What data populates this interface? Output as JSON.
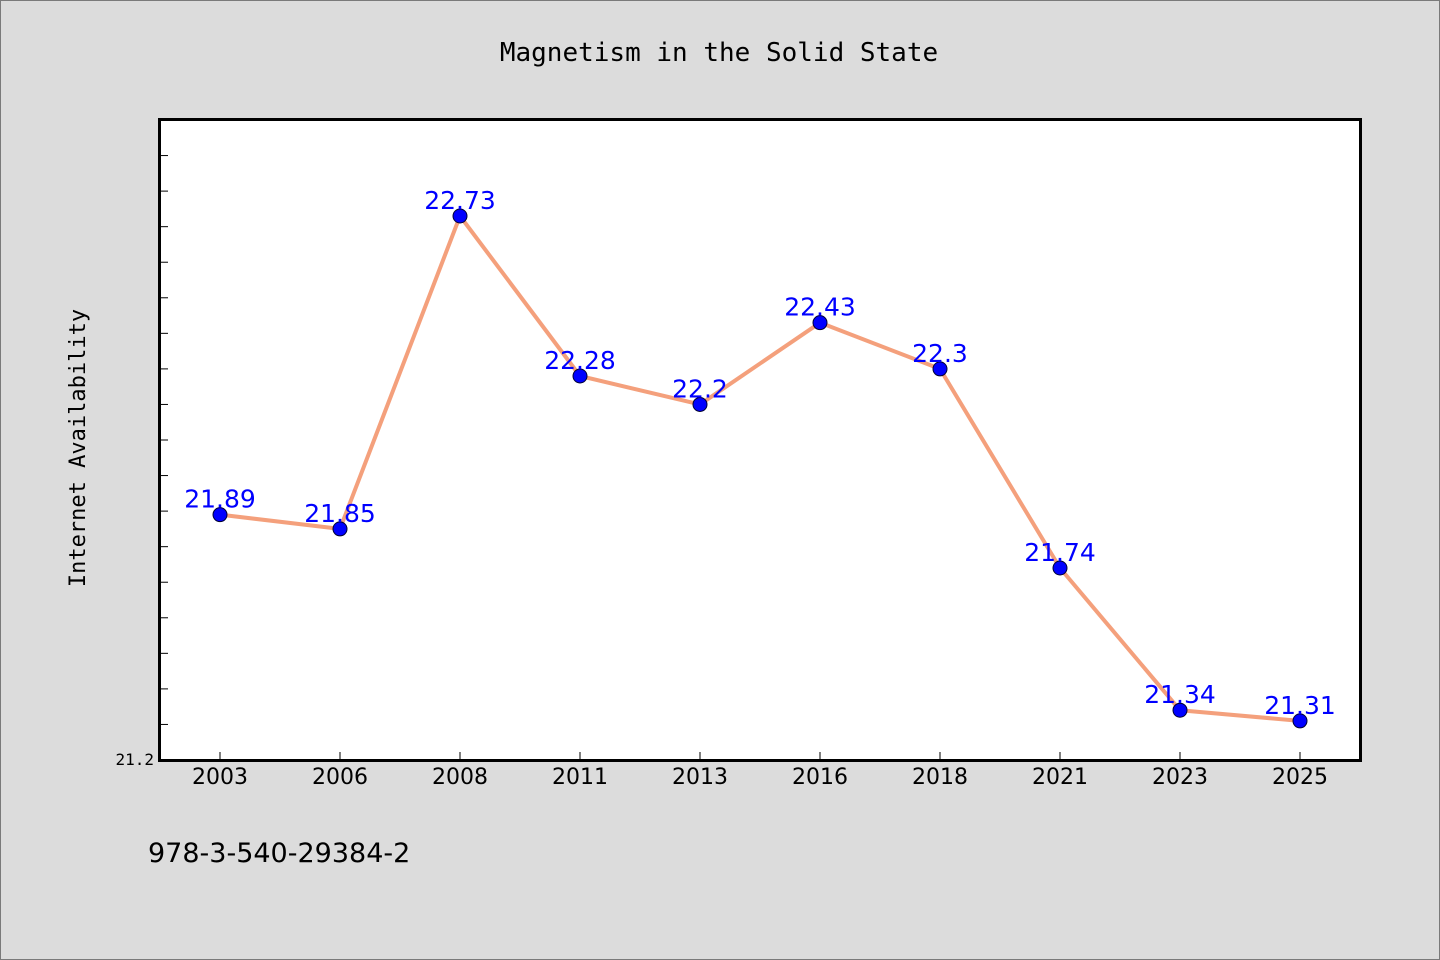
{
  "chart_data": {
    "type": "line",
    "title": "Magnetism in the Solid State",
    "xlabel": "",
    "ylabel": "Internet Availability",
    "categories": [
      "2003",
      "2006",
      "2008",
      "2011",
      "2013",
      "2016",
      "2018",
      "2021",
      "2023",
      "2025"
    ],
    "series": [
      {
        "values": [
          21.89,
          21.85,
          22.73,
          22.28,
          22.2,
          22.43,
          22.3,
          21.74,
          21.34,
          21.31
        ],
        "data_labels": [
          "21.89",
          "21.85",
          "22.73",
          "22.28",
          "22.2",
          "22.43",
          "22.3",
          "21.74",
          "21.34",
          "21.31"
        ]
      }
    ],
    "ylim": [
      21.2,
      23.0
    ],
    "ytick_labels": [
      {
        "value": 21.2,
        "label": "21.2"
      }
    ],
    "grid": false,
    "legend": "none",
    "colors": {
      "line": "#f4a07c",
      "marker": "#0000ff",
      "data_label": "#0000ff",
      "plot_background": "#ffffff",
      "page_background": "#dcdcdc"
    }
  },
  "footer_text": "978-3-540-29384-2"
}
